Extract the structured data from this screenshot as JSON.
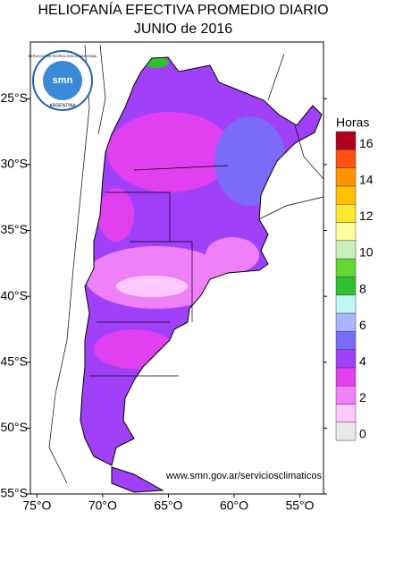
{
  "map": {
    "title": "HELIOFANÍA EFECTIVA PROMEDIO DIARIO",
    "subtitle": "JUNIO de 2016",
    "credit": "www.smn.gov.ar/serviciosclimaticos",
    "logo": {
      "text": "smn",
      "ring_top": "SERVICIO METEOROLÓGICO NACIONAL",
      "ring_bottom": "ARGENTINA"
    },
    "latlim": [
      -20.7,
      -55
    ],
    "lonlim": [
      -75.5,
      -53.2
    ],
    "lat_ticks": [
      {
        "value": -25,
        "label": "25°S"
      },
      {
        "value": -30,
        "label": "30°S"
      },
      {
        "value": -35,
        "label": "35°S"
      },
      {
        "value": -40,
        "label": "40°S"
      },
      {
        "value": -45,
        "label": "45°S"
      },
      {
        "value": -50,
        "label": "50°S"
      },
      {
        "value": -55,
        "label": "55°S"
      }
    ],
    "lon_ticks": [
      {
        "value": -75,
        "label": "75°O"
      },
      {
        "value": -70,
        "label": "70°O"
      },
      {
        "value": -65,
        "label": "65°O"
      },
      {
        "value": -60,
        "label": "60°O"
      },
      {
        "value": -55,
        "label": "55°O"
      }
    ],
    "legend": {
      "title": "Horas",
      "colors": [
        "#e8e8e8",
        "#ffc8ff",
        "#f080f8",
        "#e040f0",
        "#a040f8",
        "#7a6cf8",
        "#a8b4ff",
        "#c0f8f8",
        "#30c030",
        "#60d830",
        "#c8f0b8",
        "#ffffa0",
        "#ffe830",
        "#ffc000",
        "#ff9400",
        "#ff5010",
        "#b00020"
      ],
      "ticks": [
        0,
        2,
        4,
        6,
        8,
        10,
        12,
        14,
        16
      ]
    }
  }
}
